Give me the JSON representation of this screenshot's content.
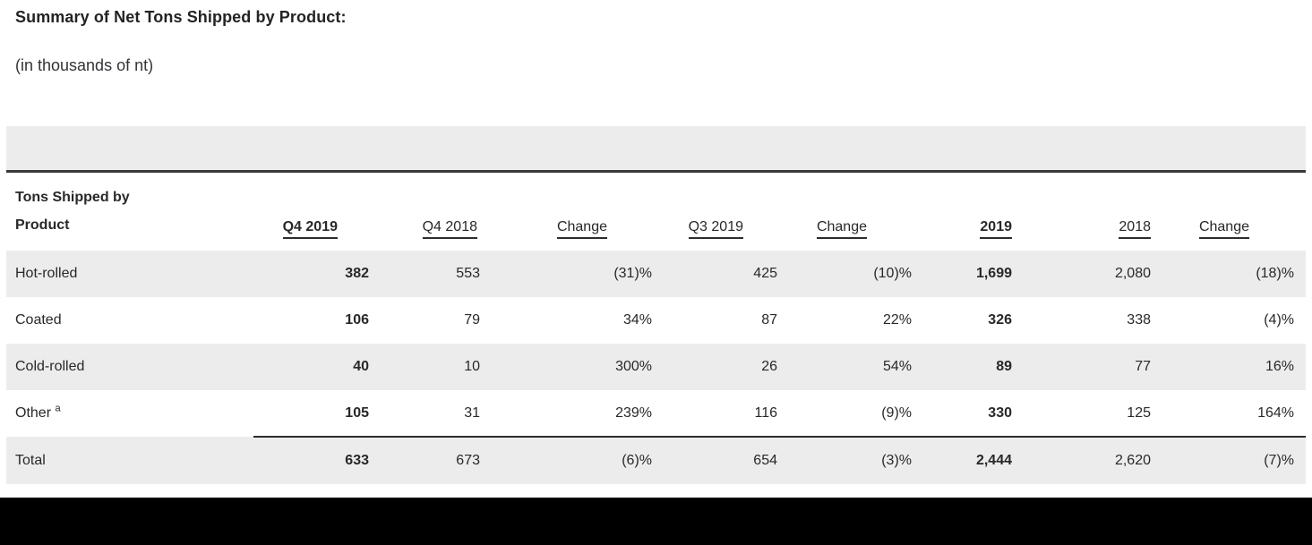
{
  "document": {
    "title": "Summary of Net Tons Shipped by Product:",
    "subtitle": "(in thousands of nt)"
  },
  "table": {
    "row_header": {
      "line1": "Tons Shipped by",
      "line2": "Product"
    },
    "columns": [
      {
        "label": "Q4 2019",
        "bold": true
      },
      {
        "label": "Q4 2018",
        "bold": false
      },
      {
        "label": "Change",
        "bold": false
      },
      {
        "label": "Q3 2019",
        "bold": false
      },
      {
        "label": "Change",
        "bold": false
      },
      {
        "label": "2019",
        "bold": true
      },
      {
        "label": "2018",
        "bold": false
      },
      {
        "label": "Change",
        "bold": false
      }
    ],
    "rows": [
      {
        "label": "Hot-rolled",
        "footnote": "",
        "values": [
          "382",
          "553",
          "(31)%",
          "425",
          "(10)%",
          "1,699",
          "2,080",
          "(18)%"
        ]
      },
      {
        "label": "Coated",
        "footnote": "",
        "values": [
          "106",
          "79",
          "34%",
          "87",
          "22%",
          "326",
          "338",
          "(4)%"
        ]
      },
      {
        "label": "Cold-rolled",
        "footnote": "",
        "values": [
          "40",
          "10",
          "300%",
          "26",
          "54%",
          "89",
          "77",
          "16%"
        ]
      },
      {
        "label": "Other",
        "footnote": "a",
        "values": [
          "105",
          "31",
          "239%",
          "116",
          "(9)%",
          "330",
          "125",
          "164%"
        ]
      }
    ],
    "total": {
      "label": "Total",
      "values": [
        "633",
        "673",
        "(6)%",
        "654",
        "(3)%",
        "2,444",
        "2,620",
        "(7)%"
      ]
    }
  },
  "colors": {
    "shaded_row": "#ececec",
    "table_top_border": "#3a3a3a",
    "total_rule": "#2b2b2b",
    "text": "#28282a",
    "bottom_bar": "#000000"
  }
}
